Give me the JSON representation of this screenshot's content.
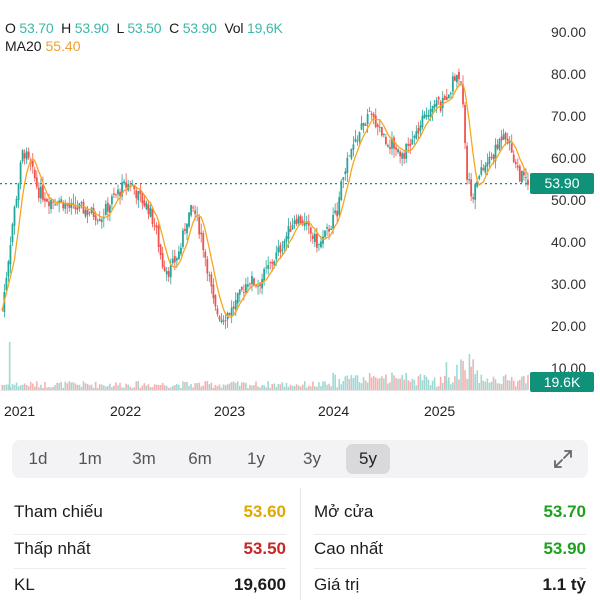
{
  "ohlc": {
    "o_label": "O",
    "o": "53.70",
    "h_label": "H",
    "h": "53.90",
    "l_label": "L",
    "l": "53.50",
    "c_label": "C",
    "c": "53.90",
    "vol_label": "Vol",
    "vol": "19,6K"
  },
  "ma": {
    "label": "MA20",
    "value": "55.40"
  },
  "price_axis": [
    "90.00",
    "80.00",
    "70.00",
    "60.00",
    "50.00",
    "40.00",
    "30.00",
    "20.00",
    "10.00"
  ],
  "current_price_tag": "53.90",
  "volume_tag": "19.6K",
  "x_axis": [
    "2021",
    "2022",
    "2023",
    "2024",
    "2025"
  ],
  "ranges": [
    "1d",
    "1m",
    "3m",
    "6m",
    "1y",
    "3y",
    "5y"
  ],
  "active_range": "5y",
  "stats": {
    "left": [
      {
        "label": "Tham chiếu",
        "value": "53.60",
        "color": "#e0a800"
      },
      {
        "label": "Thấp nhất",
        "value": "53.50",
        "color": "#c62828"
      },
      {
        "label": "KL",
        "value": "19,600",
        "color": "#1c1c1c"
      }
    ],
    "right": [
      {
        "label": "Mở cửa",
        "value": "53.70",
        "color": "#1fa01f"
      },
      {
        "label": "Cao nhất",
        "value": "53.90",
        "color": "#1fa01f"
      },
      {
        "label": "Giá trị",
        "value": "1.1 tỷ",
        "color": "#1c1c1c"
      }
    ]
  },
  "colors": {
    "up": "#26a69a",
    "down": "#ef5350",
    "ma": "#f5a623",
    "accent": "#10917a"
  },
  "chart_data": {
    "type": "candlestick",
    "x_labels": [
      "2021",
      "2022",
      "2023",
      "2024",
      "2025"
    ],
    "ylim": [
      10,
      90
    ],
    "close_path": [
      [
        2020.85,
        24
      ],
      [
        2020.95,
        45
      ],
      [
        2021.05,
        62
      ],
      [
        2021.12,
        58
      ],
      [
        2021.2,
        52
      ],
      [
        2021.3,
        50
      ],
      [
        2021.4,
        50
      ],
      [
        2021.5,
        48
      ],
      [
        2021.6,
        48
      ],
      [
        2021.7,
        47
      ],
      [
        2021.8,
        46
      ],
      [
        2021.9,
        50
      ],
      [
        2022.0,
        53
      ],
      [
        2022.08,
        54
      ],
      [
        2022.15,
        51
      ],
      [
        2022.25,
        48
      ],
      [
        2022.32,
        43
      ],
      [
        2022.38,
        35
      ],
      [
        2022.45,
        33
      ],
      [
        2022.55,
        38
      ],
      [
        2022.62,
        46
      ],
      [
        2022.68,
        48
      ],
      [
        2022.75,
        42
      ],
      [
        2022.82,
        33
      ],
      [
        2022.88,
        24
      ],
      [
        2022.95,
        22
      ],
      [
        2023.05,
        24
      ],
      [
        2023.12,
        27
      ],
      [
        2023.2,
        31
      ],
      [
        2023.3,
        30
      ],
      [
        2023.4,
        34
      ],
      [
        2023.5,
        38
      ],
      [
        2023.58,
        42
      ],
      [
        2023.65,
        46
      ],
      [
        2023.72,
        45
      ],
      [
        2023.8,
        42
      ],
      [
        2023.88,
        39
      ],
      [
        2023.95,
        42
      ],
      [
        2024.05,
        47
      ],
      [
        2024.12,
        57
      ],
      [
        2024.2,
        62
      ],
      [
        2024.28,
        67
      ],
      [
        2024.36,
        70
      ],
      [
        2024.45,
        68
      ],
      [
        2024.52,
        64
      ],
      [
        2024.6,
        63
      ],
      [
        2024.68,
        61
      ],
      [
        2024.75,
        63
      ],
      [
        2024.82,
        66
      ],
      [
        2024.9,
        70
      ],
      [
        2024.98,
        74
      ],
      [
        2025.05,
        72
      ],
      [
        2025.12,
        76
      ],
      [
        2025.2,
        80
      ],
      [
        2025.25,
        78
      ],
      [
        2025.3,
        55
      ],
      [
        2025.35,
        51
      ],
      [
        2025.42,
        56
      ],
      [
        2025.5,
        59
      ],
      [
        2025.58,
        62
      ],
      [
        2025.65,
        67
      ],
      [
        2025.72,
        62
      ],
      [
        2025.8,
        56
      ],
      [
        2025.88,
        53.9
      ]
    ]
  }
}
